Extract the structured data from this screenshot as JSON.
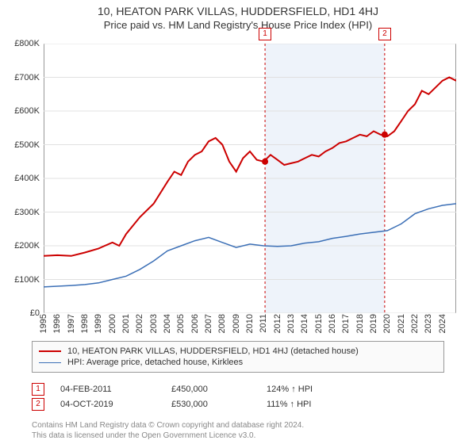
{
  "title": "10, HEATON PARK VILLAS, HUDDERSFIELD, HD1 4HJ",
  "subtitle": "Price paid vs. HM Land Registry's House Price Index (HPI)",
  "footer_line1": "Contains HM Land Registry data © Crown copyright and database right 2024.",
  "footer_line2": "This data is licensed under the Open Government Licence v3.0.",
  "chart": {
    "type": "line",
    "background_color": "#ffffff",
    "grid_color": "#e0e0e0",
    "band_color": "#eef3fa",
    "axis_color": "#333333",
    "ylim": [
      0,
      800000
    ],
    "ytick_step": 100000,
    "yticks": [
      "£0",
      "£100K",
      "£200K",
      "£300K",
      "£400K",
      "£500K",
      "£600K",
      "£700K",
      "£800K"
    ],
    "xlim_year": [
      1995,
      2025
    ],
    "xticks": [
      "1995",
      "1996",
      "1997",
      "1998",
      "1999",
      "2000",
      "2001",
      "2002",
      "2003",
      "2004",
      "2005",
      "2006",
      "2007",
      "2008",
      "2009",
      "2010",
      "2011",
      "2012",
      "2013",
      "2014",
      "2015",
      "2016",
      "2017",
      "2018",
      "2019",
      "2020",
      "2021",
      "2022",
      "2023",
      "2024"
    ],
    "band_start_year": 2011.1,
    "band_end_year": 2019.8,
    "series": [
      {
        "key": "property",
        "color": "#cc0000",
        "line_width": 2,
        "legend": "10, HEATON PARK VILLAS, HUDDERSFIELD, HD1 4HJ (detached house)",
        "points": [
          [
            1995,
            170000
          ],
          [
            1996,
            172000
          ],
          [
            1997,
            170000
          ],
          [
            1998,
            180000
          ],
          [
            1999,
            192000
          ],
          [
            2000,
            210000
          ],
          [
            2000.5,
            200000
          ],
          [
            2001,
            235000
          ],
          [
            2002,
            285000
          ],
          [
            2003,
            325000
          ],
          [
            2004,
            390000
          ],
          [
            2004.5,
            420000
          ],
          [
            2005,
            410000
          ],
          [
            2005.5,
            450000
          ],
          [
            2006,
            470000
          ],
          [
            2006.5,
            480000
          ],
          [
            2007,
            510000
          ],
          [
            2007.5,
            520000
          ],
          [
            2008,
            500000
          ],
          [
            2008.5,
            450000
          ],
          [
            2009,
            420000
          ],
          [
            2009.5,
            460000
          ],
          [
            2010,
            480000
          ],
          [
            2010.5,
            455000
          ],
          [
            2011,
            450000
          ],
          [
            2011.5,
            470000
          ],
          [
            2012,
            455000
          ],
          [
            2012.5,
            440000
          ],
          [
            2013,
            445000
          ],
          [
            2013.5,
            450000
          ],
          [
            2014,
            460000
          ],
          [
            2014.5,
            470000
          ],
          [
            2015,
            465000
          ],
          [
            2015.5,
            480000
          ],
          [
            2016,
            490000
          ],
          [
            2016.5,
            505000
          ],
          [
            2017,
            510000
          ],
          [
            2017.5,
            520000
          ],
          [
            2018,
            530000
          ],
          [
            2018.5,
            525000
          ],
          [
            2019,
            540000
          ],
          [
            2019.5,
            530000
          ],
          [
            2020,
            525000
          ],
          [
            2020.5,
            540000
          ],
          [
            2021,
            570000
          ],
          [
            2021.5,
            600000
          ],
          [
            2022,
            620000
          ],
          [
            2022.5,
            660000
          ],
          [
            2023,
            650000
          ],
          [
            2023.5,
            670000
          ],
          [
            2024,
            690000
          ],
          [
            2024.5,
            700000
          ],
          [
            2025,
            690000
          ]
        ]
      },
      {
        "key": "hpi",
        "color": "#3b6fb6",
        "line_width": 1.5,
        "legend": "HPI: Average price, detached house, Kirklees",
        "points": [
          [
            1995,
            78000
          ],
          [
            1996,
            80000
          ],
          [
            1997,
            82000
          ],
          [
            1998,
            85000
          ],
          [
            1999,
            90000
          ],
          [
            2000,
            100000
          ],
          [
            2001,
            110000
          ],
          [
            2002,
            130000
          ],
          [
            2003,
            155000
          ],
          [
            2004,
            185000
          ],
          [
            2005,
            200000
          ],
          [
            2006,
            215000
          ],
          [
            2007,
            225000
          ],
          [
            2008,
            210000
          ],
          [
            2009,
            195000
          ],
          [
            2010,
            205000
          ],
          [
            2011,
            200000
          ],
          [
            2012,
            198000
          ],
          [
            2013,
            200000
          ],
          [
            2014,
            208000
          ],
          [
            2015,
            212000
          ],
          [
            2016,
            222000
          ],
          [
            2017,
            228000
          ],
          [
            2018,
            235000
          ],
          [
            2019,
            240000
          ],
          [
            2020,
            245000
          ],
          [
            2021,
            265000
          ],
          [
            2022,
            295000
          ],
          [
            2023,
            310000
          ],
          [
            2024,
            320000
          ],
          [
            2025,
            325000
          ]
        ]
      }
    ],
    "transaction_markers": [
      {
        "num": "1",
        "year": 2011.1,
        "price": 450000,
        "color": "#cc0000"
      },
      {
        "num": "2",
        "year": 2019.8,
        "price": 530000,
        "color": "#cc0000"
      }
    ]
  },
  "transactions": [
    {
      "num": "1",
      "date": "04-FEB-2011",
      "price": "£450,000",
      "pct": "124% ↑ HPI",
      "color": "#cc0000"
    },
    {
      "num": "2",
      "date": "04-OCT-2019",
      "price": "£530,000",
      "pct": "111% ↑ HPI",
      "color": "#cc0000"
    }
  ]
}
